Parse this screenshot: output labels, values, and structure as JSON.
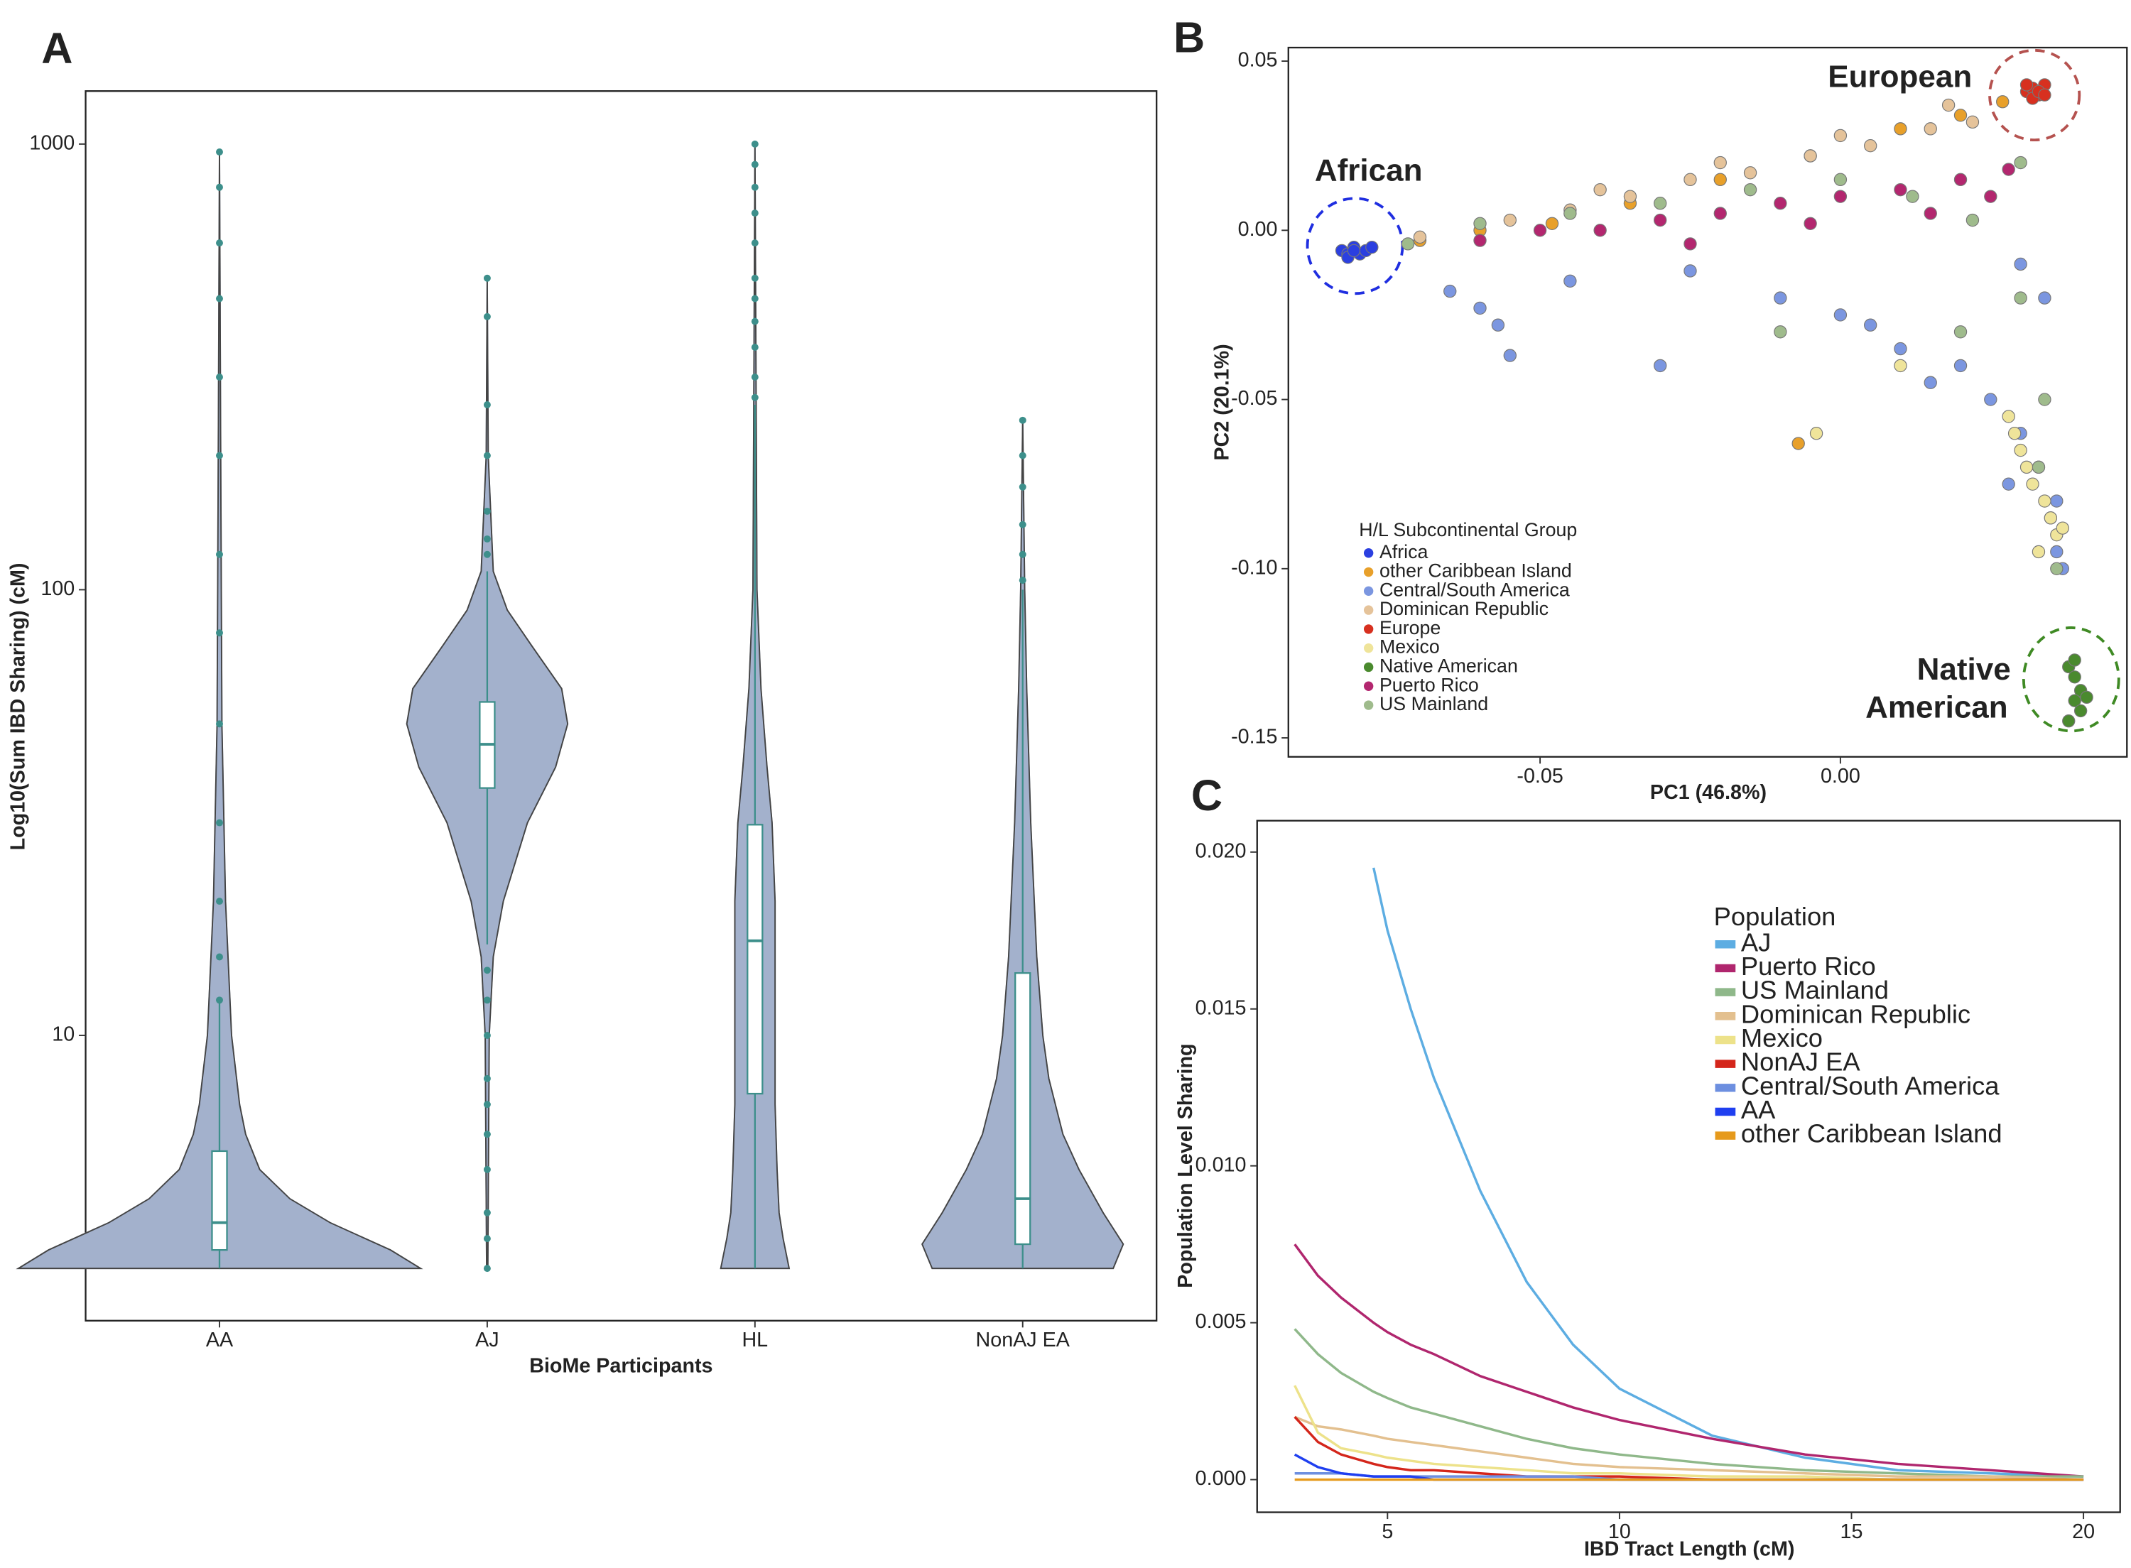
{
  "chart_data": [
    {
      "type": "violin",
      "panel_label": "A",
      "x_label": "BioMe Participants",
      "y_label": "Log10(Sum IBD Sharing) (cM)",
      "categories": [
        "AA",
        "AJ",
        "HL",
        "NonAJ EA"
      ],
      "log_y": true,
      "ylim": [
        2.29,
        1315
      ],
      "yticks": [
        10,
        100,
        1000
      ],
      "fill": "#a3b1cc",
      "box_color": "#3d8f8b",
      "groups": [
        {
          "density_y": [
            3.0,
            3.3,
            3.8,
            4.3,
            5,
            6,
            7,
            10,
            20,
            50,
            200,
            960
          ],
          "density": [
            1.0,
            0.85,
            0.55,
            0.35,
            0.2,
            0.13,
            0.1,
            0.06,
            0.03,
            0.012,
            0.006,
            0
          ],
          "q1": 3.3,
          "median": 3.8,
          "q3": 5.5,
          "whisker_low": 3.0,
          "whisker_high": 12,
          "outliers": [
            12,
            15,
            20,
            30,
            50,
            80,
            120,
            200,
            300,
            450,
            600,
            800,
            960
          ]
        },
        {
          "density_y": [
            3.0,
            10,
            15,
            20,
            30,
            40,
            50,
            60,
            75,
            90,
            110,
            200,
            500
          ],
          "density": [
            0.003,
            0.01,
            0.03,
            0.08,
            0.2,
            0.34,
            0.4,
            0.37,
            0.22,
            0.1,
            0.03,
            0.005,
            0
          ],
          "q1": 35.9,
          "median": 45,
          "q3": 56,
          "whisker_low": 16,
          "whisker_high": 110,
          "outliers": [
            3.0,
            3.5,
            4,
            5,
            6,
            7,
            8,
            10,
            12,
            14,
            120,
            130,
            150,
            200,
            260,
            410,
            500
          ]
        },
        {
          "density_y": [
            3.0,
            3.5,
            4,
            5,
            7,
            10,
            15,
            20,
            30,
            40,
            60,
            100,
            1000
          ],
          "density": [
            0.17,
            0.14,
            0.12,
            0.11,
            0.1,
            0.1,
            0.1,
            0.1,
            0.085,
            0.06,
            0.03,
            0.01,
            0
          ],
          "q1": 7.4,
          "median": 16.3,
          "q3": 29.7,
          "whisker_low": 3.0,
          "whisker_high": 260,
          "outliers": [
            270,
            300,
            350,
            400,
            450,
            500,
            600,
            700,
            800,
            900,
            1000
          ]
        },
        {
          "density_y": [
            3.0,
            3.4,
            4,
            5,
            6,
            8,
            10,
            15,
            30,
            60,
            100,
            240
          ],
          "density": [
            0.45,
            0.5,
            0.4,
            0.28,
            0.2,
            0.13,
            0.1,
            0.07,
            0.04,
            0.02,
            0.01,
            0
          ],
          "q1": 3.4,
          "median": 4.3,
          "q3": 13.8,
          "whisker_low": 3.0,
          "whisker_high": 100,
          "outliers": [
            105,
            120,
            140,
            170,
            200,
            240
          ]
        }
      ]
    },
    {
      "type": "scatter",
      "panel_label": "B",
      "x_label": "PC1 (46.8%)",
      "y_label": "PC2 (20.1%)",
      "xlim": [
        -0.0919,
        0.0477
      ],
      "ylim": [
        -0.1556,
        0.054
      ],
      "xticks": [
        -0.05,
        {
          "value": 0,
          "label": "0.00"
        }
      ],
      "yticks": [
        0.05,
        {
          "value": 0,
          "label": "0.00"
        },
        -0.05,
        {
          "value": -0.1,
          "label": "-0.10"
        },
        -0.15
      ],
      "legend_title": "H/L Subcontinental Group",
      "annotations": [
        {
          "text": "European",
          "color": "#d7191c"
        },
        {
          "text": "African",
          "color": "#1f2ee0"
        },
        {
          "text": "Native",
          "color": "#3f8a24"
        },
        {
          "text": "American",
          "color": "#3f8a24"
        }
      ],
      "series": [
        {
          "name": "Africa",
          "color": "#2b3fe0",
          "x": [
            -0.083,
            -0.082,
            -0.081,
            -0.08,
            -0.079,
            -0.082,
            -0.078,
            -0.081
          ],
          "y": [
            -0.006,
            -0.007,
            -0.005,
            -0.007,
            -0.006,
            -0.008,
            -0.005,
            -0.006
          ]
        },
        {
          "name": "other Caribbean Island",
          "color": "#e8a02a",
          "x": [
            -0.07,
            -0.06,
            -0.048,
            -0.035,
            -0.02,
            -0.005,
            0.01,
            0.02,
            0.027,
            -0.007
          ],
          "y": [
            -0.003,
            0.0,
            0.002,
            0.008,
            0.015,
            0.022,
            0.03,
            0.034,
            0.038,
            -0.063
          ]
        },
        {
          "name": "Central/South America",
          "color": "#7b96e0",
          "x": [
            -0.065,
            -0.06,
            -0.057,
            -0.045,
            -0.025,
            -0.01,
            0.0,
            0.01,
            0.02,
            0.025,
            0.03,
            0.033,
            0.035,
            0.036,
            0.037,
            0.036,
            0.034,
            0.03,
            0.028,
            0.015,
            0.005,
            -0.03,
            -0.055
          ],
          "y": [
            -0.018,
            -0.023,
            -0.028,
            -0.015,
            -0.012,
            -0.02,
            -0.025,
            -0.035,
            -0.04,
            -0.05,
            -0.06,
            -0.07,
            -0.085,
            -0.095,
            -0.1,
            -0.08,
            -0.02,
            -0.01,
            -0.075,
            -0.045,
            -0.028,
            -0.04,
            -0.037
          ]
        },
        {
          "name": "Dominican Republic",
          "color": "#e5c39a",
          "x": [
            -0.07,
            -0.055,
            -0.045,
            -0.035,
            -0.025,
            -0.015,
            -0.005,
            0.005,
            0.015,
            0.022,
            -0.04,
            -0.02,
            0.0,
            0.018
          ],
          "y": [
            -0.002,
            0.003,
            0.006,
            0.01,
            0.015,
            0.017,
            0.022,
            0.025,
            0.03,
            0.032,
            0.012,
            0.02,
            0.028,
            0.037
          ]
        },
        {
          "name": "Europe",
          "color": "#d7301f",
          "x": [
            0.031,
            0.032,
            0.033,
            0.034,
            0.032,
            0.033,
            0.031,
            0.034
          ],
          "y": [
            0.041,
            0.042,
            0.04,
            0.043,
            0.039,
            0.041,
            0.043,
            0.04
          ]
        },
        {
          "name": "Mexico",
          "color": "#efe49a",
          "x": [
            0.028,
            0.03,
            0.032,
            0.034,
            0.035,
            0.036,
            0.033,
            0.031,
            0.029,
            0.037,
            -0.004,
            0.01
          ],
          "y": [
            -0.055,
            -0.065,
            -0.075,
            -0.08,
            -0.085,
            -0.09,
            -0.095,
            -0.07,
            -0.06,
            -0.088,
            -0.06,
            -0.04
          ]
        },
        {
          "name": "Native American",
          "color": "#4a8a2e",
          "x": [
            0.038,
            0.039,
            0.04,
            0.039,
            0.04,
            0.038,
            0.041,
            0.039
          ],
          "y": [
            -0.129,
            -0.132,
            -0.136,
            -0.139,
            -0.142,
            -0.145,
            -0.138,
            -0.127
          ]
        },
        {
          "name": "Puerto Rico",
          "color": "#b3276f",
          "x": [
            -0.06,
            -0.05,
            -0.04,
            -0.03,
            -0.02,
            -0.01,
            0.0,
            0.01,
            0.02,
            0.028,
            -0.005,
            0.015,
            0.025,
            -0.025
          ],
          "y": [
            -0.003,
            0.0,
            0.0,
            0.003,
            0.005,
            0.008,
            0.01,
            0.012,
            0.015,
            0.018,
            0.002,
            0.005,
            0.01,
            -0.004
          ]
        },
        {
          "name": "US Mainland",
          "color": "#9fbb8c",
          "x": [
            -0.072,
            -0.06,
            -0.045,
            -0.03,
            -0.015,
            0.0,
            0.012,
            0.022,
            0.03,
            0.034,
            0.036,
            0.033,
            0.02,
            -0.01,
            0.03
          ],
          "y": [
            -0.004,
            0.002,
            0.005,
            0.008,
            0.012,
            0.015,
            0.01,
            0.003,
            -0.02,
            -0.05,
            -0.1,
            -0.07,
            -0.03,
            -0.03,
            0.02
          ]
        }
      ]
    },
    {
      "type": "line",
      "panel_label": "C",
      "x_label": "IBD Tract Length (cM)",
      "y_label": "Population Level Sharing",
      "xlim": [
        2.19,
        20.79
      ],
      "ylim": [
        -0.00104,
        0.021
      ],
      "xticks": [
        5,
        10,
        15,
        20
      ],
      "yticks": [
        {
          "value": 0,
          "label": "0.000"
        },
        0.005,
        {
          "value": 0.01,
          "label": "0.010"
        },
        0.015,
        {
          "value": 0.02,
          "label": "0.020"
        }
      ],
      "legend_title": "Population",
      "x": [
        3,
        3.5,
        4,
        4.7,
        5,
        5.5,
        6,
        7,
        8,
        9,
        10,
        12,
        14,
        16,
        18,
        20
      ],
      "series": [
        {
          "name": "AJ",
          "color": "#5dade2",
          "values": [
            null,
            null,
            null,
            0.0195,
            0.0175,
            0.015,
            0.0128,
            0.0092,
            0.0063,
            0.0043,
            0.0029,
            0.0014,
            0.0007,
            0.0003,
            0.0002,
            0.0001
          ]
        },
        {
          "name": "Puerto Rico",
          "color": "#b0266e",
          "values": [
            0.0075,
            0.0065,
            0.0058,
            0.005,
            0.0047,
            0.0043,
            0.004,
            0.0033,
            0.0028,
            0.0023,
            0.0019,
            0.0013,
            0.0008,
            0.0005,
            0.0003,
            0.0001
          ]
        },
        {
          "name": "US Mainland",
          "color": "#8fb88a",
          "values": [
            0.0048,
            0.004,
            0.0034,
            0.0028,
            0.0026,
            0.0023,
            0.0021,
            0.0017,
            0.0013,
            0.001,
            0.0008,
            0.0005,
            0.0003,
            0.0002,
            0.0001,
            0.0001
          ]
        },
        {
          "name": "Dominican Republic",
          "color": "#e3c08f",
          "values": [
            0.002,
            0.0017,
            0.0016,
            0.0014,
            0.0013,
            0.0012,
            0.0011,
            0.0009,
            0.0007,
            0.0005,
            0.0004,
            0.0003,
            0.0002,
            0.0001,
            0.0001,
            0
          ]
        },
        {
          "name": "Mexico",
          "color": "#ede28a",
          "values": [
            0.003,
            0.0015,
            0.001,
            0.0008,
            0.0007,
            0.0006,
            0.0005,
            0.0004,
            0.0003,
            0.0002,
            0.0002,
            0.0001,
            0.0001,
            0,
            0,
            0
          ]
        },
        {
          "name": "NonAJ EA",
          "color": "#d4261b",
          "values": [
            0.002,
            0.0012,
            0.0008,
            0.0005,
            0.0004,
            0.0003,
            0.0003,
            0.0002,
            0.0001,
            0.0001,
            0.0001,
            0,
            0,
            0,
            0,
            0
          ]
        },
        {
          "name": "Central/South America",
          "color": "#6d8fe0",
          "values": [
            0.0002,
            0.0002,
            0.0002,
            0.0001,
            0.0001,
            0.0001,
            0.0001,
            0.0001,
            0.0001,
            0.0001,
            0,
            0,
            0,
            0,
            0,
            0
          ]
        },
        {
          "name": "AA",
          "color": "#1f3ff0",
          "values": [
            0.0008,
            0.0004,
            0.0002,
            0.0001,
            0.0001,
            0.0001,
            0,
            0,
            0,
            0,
            0,
            0,
            0,
            0,
            0,
            0
          ]
        },
        {
          "name": "other Caribbean Island",
          "color": "#e69a1c",
          "values": [
            0,
            0,
            0,
            0,
            0,
            0,
            0,
            0,
            0,
            0,
            0,
            0,
            0,
            0,
            0,
            0
          ]
        }
      ]
    }
  ]
}
